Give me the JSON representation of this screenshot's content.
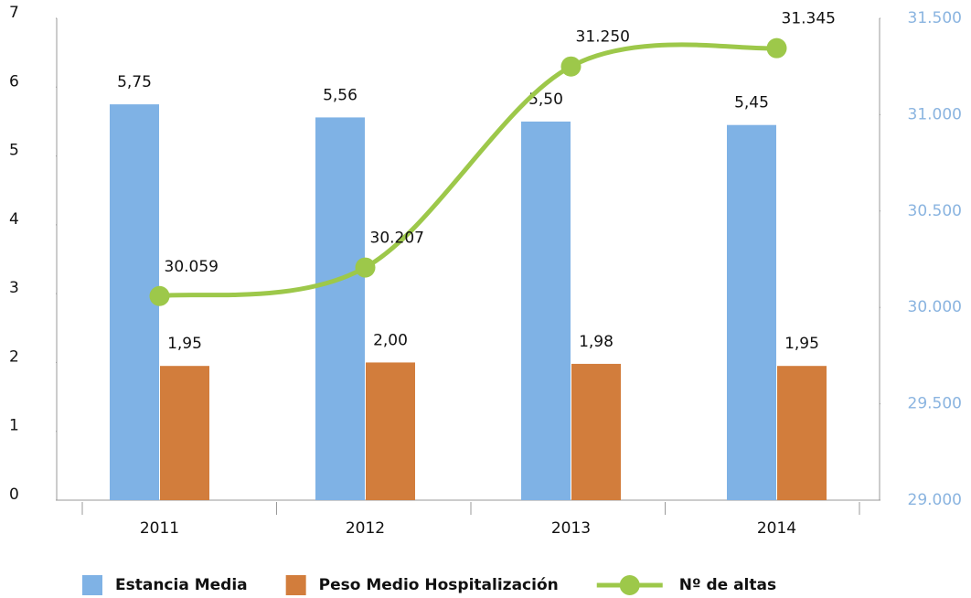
{
  "chart_data": {
    "type": "bar-line",
    "categories": [
      "2011",
      "2012",
      "2013",
      "2014"
    ],
    "series": [
      {
        "name": "Estancia Media",
        "color": "#7fb2e5",
        "type": "bar",
        "values": [
          5.75,
          5.56,
          5.5,
          5.45
        ],
        "value_labels": [
          "5,75",
          "5,56",
          "5,50",
          "5,45"
        ]
      },
      {
        "name": "Peso Medio Hospitalización",
        "color": "#d27d3c",
        "type": "bar",
        "values": [
          1.95,
          2.0,
          1.98,
          1.95
        ],
        "value_labels": [
          "1,95",
          "2,00",
          "1,98",
          "1,95"
        ]
      },
      {
        "name": "Nº de altas",
        "color": "#9dc84a",
        "type": "line",
        "axis": "y2",
        "values": [
          30059,
          30207,
          31250,
          31345
        ],
        "value_labels": [
          "30.059",
          "30.207",
          "31.250",
          "31.345"
        ]
      }
    ],
    "ylim": [
      0,
      7
    ],
    "yticks": [
      0,
      1,
      2,
      3,
      4,
      5,
      6,
      7
    ],
    "y2lim": [
      29000,
      31500
    ],
    "y2ticks": [
      {
        "value": 29000,
        "label": "29.000"
      },
      {
        "value": 29500,
        "label": "29.500"
      },
      {
        "value": 30000,
        "label": "30.000"
      },
      {
        "value": 30500,
        "label": "30.500"
      },
      {
        "value": 31000,
        "label": "31.000"
      },
      {
        "value": 31500,
        "label": "31.500"
      }
    ],
    "legend": "bottom"
  }
}
